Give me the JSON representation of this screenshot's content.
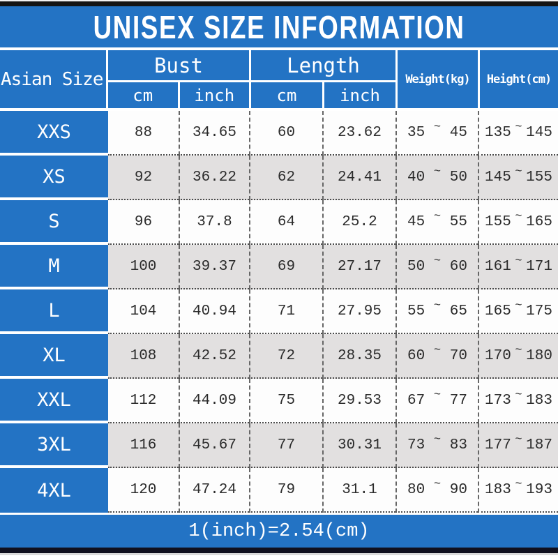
{
  "title": "UNISEX SIZE INFORMATION",
  "header": {
    "size_label": "Asian Size",
    "bust_label": "Bust",
    "length_label": "Length",
    "cm_label": "cm",
    "inch_label": "inch",
    "weight_label": "Weight(kg)",
    "height_label": "Height(cm)"
  },
  "range_separator": "~",
  "rows": [
    {
      "size": "XXS",
      "bust_cm": "88",
      "bust_inch": "34.65",
      "length_cm": "60",
      "length_inch": "23.62",
      "weight_min": "35",
      "weight_max": "45",
      "height_min": "135",
      "height_max": "145"
    },
    {
      "size": "XS",
      "bust_cm": "92",
      "bust_inch": "36.22",
      "length_cm": "62",
      "length_inch": "24.41",
      "weight_min": "40",
      "weight_max": "50",
      "height_min": "145",
      "height_max": "155"
    },
    {
      "size": "S",
      "bust_cm": "96",
      "bust_inch": "37.8",
      "length_cm": "64",
      "length_inch": "25.2",
      "weight_min": "45",
      "weight_max": "55",
      "height_min": "155",
      "height_max": "165"
    },
    {
      "size": "M",
      "bust_cm": "100",
      "bust_inch": "39.37",
      "length_cm": "69",
      "length_inch": "27.17",
      "weight_min": "50",
      "weight_max": "60",
      "height_min": "161",
      "height_max": "171"
    },
    {
      "size": "L",
      "bust_cm": "104",
      "bust_inch": "40.94",
      "length_cm": "71",
      "length_inch": "27.95",
      "weight_min": "55",
      "weight_max": "65",
      "height_min": "165",
      "height_max": "175"
    },
    {
      "size": "XL",
      "bust_cm": "108",
      "bust_inch": "42.52",
      "length_cm": "72",
      "length_inch": "28.35",
      "weight_min": "60",
      "weight_max": "70",
      "height_min": "170",
      "height_max": "180"
    },
    {
      "size": "XXL",
      "bust_cm": "112",
      "bust_inch": "44.09",
      "length_cm": "75",
      "length_inch": "29.53",
      "weight_min": "67",
      "weight_max": "77",
      "height_min": "173",
      "height_max": "183"
    },
    {
      "size": "3XL",
      "bust_cm": "116",
      "bust_inch": "45.67",
      "length_cm": "77",
      "length_inch": "30.31",
      "weight_min": "73",
      "weight_max": "83",
      "height_min": "177",
      "height_max": "187"
    },
    {
      "size": "4XL",
      "bust_cm": "120",
      "bust_inch": "47.24",
      "length_cm": "79",
      "length_inch": "31.1",
      "weight_min": "80",
      "weight_max": "90",
      "height_min": "183",
      "height_max": "193"
    }
  ],
  "footer_note": "1(inch)=2.54(cm)",
  "colors": {
    "blue": "#2373c4",
    "alt_row_gray": "#e2e0e0",
    "white_row": "#fdfdfd",
    "top_bar": "#141414",
    "bottom_bar": "#10101e",
    "text_dark": "#2b2b2b"
  },
  "chart_data": {
    "type": "table",
    "title": "UNISEX SIZE INFORMATION",
    "columns": [
      "Asian Size",
      "Bust cm",
      "Bust inch",
      "Length cm",
      "Length inch",
      "Weight(kg)",
      "Height(cm)"
    ],
    "rows": [
      [
        "XXS",
        88,
        34.65,
        60,
        23.62,
        "35~45",
        "135~145"
      ],
      [
        "XS",
        92,
        36.22,
        62,
        24.41,
        "40~50",
        "145~155"
      ],
      [
        "S",
        96,
        37.8,
        64,
        25.2,
        "45~55",
        "155~165"
      ],
      [
        "M",
        100,
        39.37,
        69,
        27.17,
        "50~60",
        "161~171"
      ],
      [
        "L",
        104,
        40.94,
        71,
        27.95,
        "55~65",
        "165~175"
      ],
      [
        "XL",
        108,
        42.52,
        72,
        28.35,
        "60~70",
        "170~180"
      ],
      [
        "XXL",
        112,
        44.09,
        75,
        29.53,
        "67~77",
        "173~183"
      ],
      [
        "3XL",
        116,
        45.67,
        77,
        30.31,
        "73~83",
        "177~187"
      ],
      [
        "4XL",
        120,
        47.24,
        79,
        31.1,
        "80~90",
        "183~193"
      ]
    ],
    "footnote": "1(inch)=2.54(cm)"
  }
}
